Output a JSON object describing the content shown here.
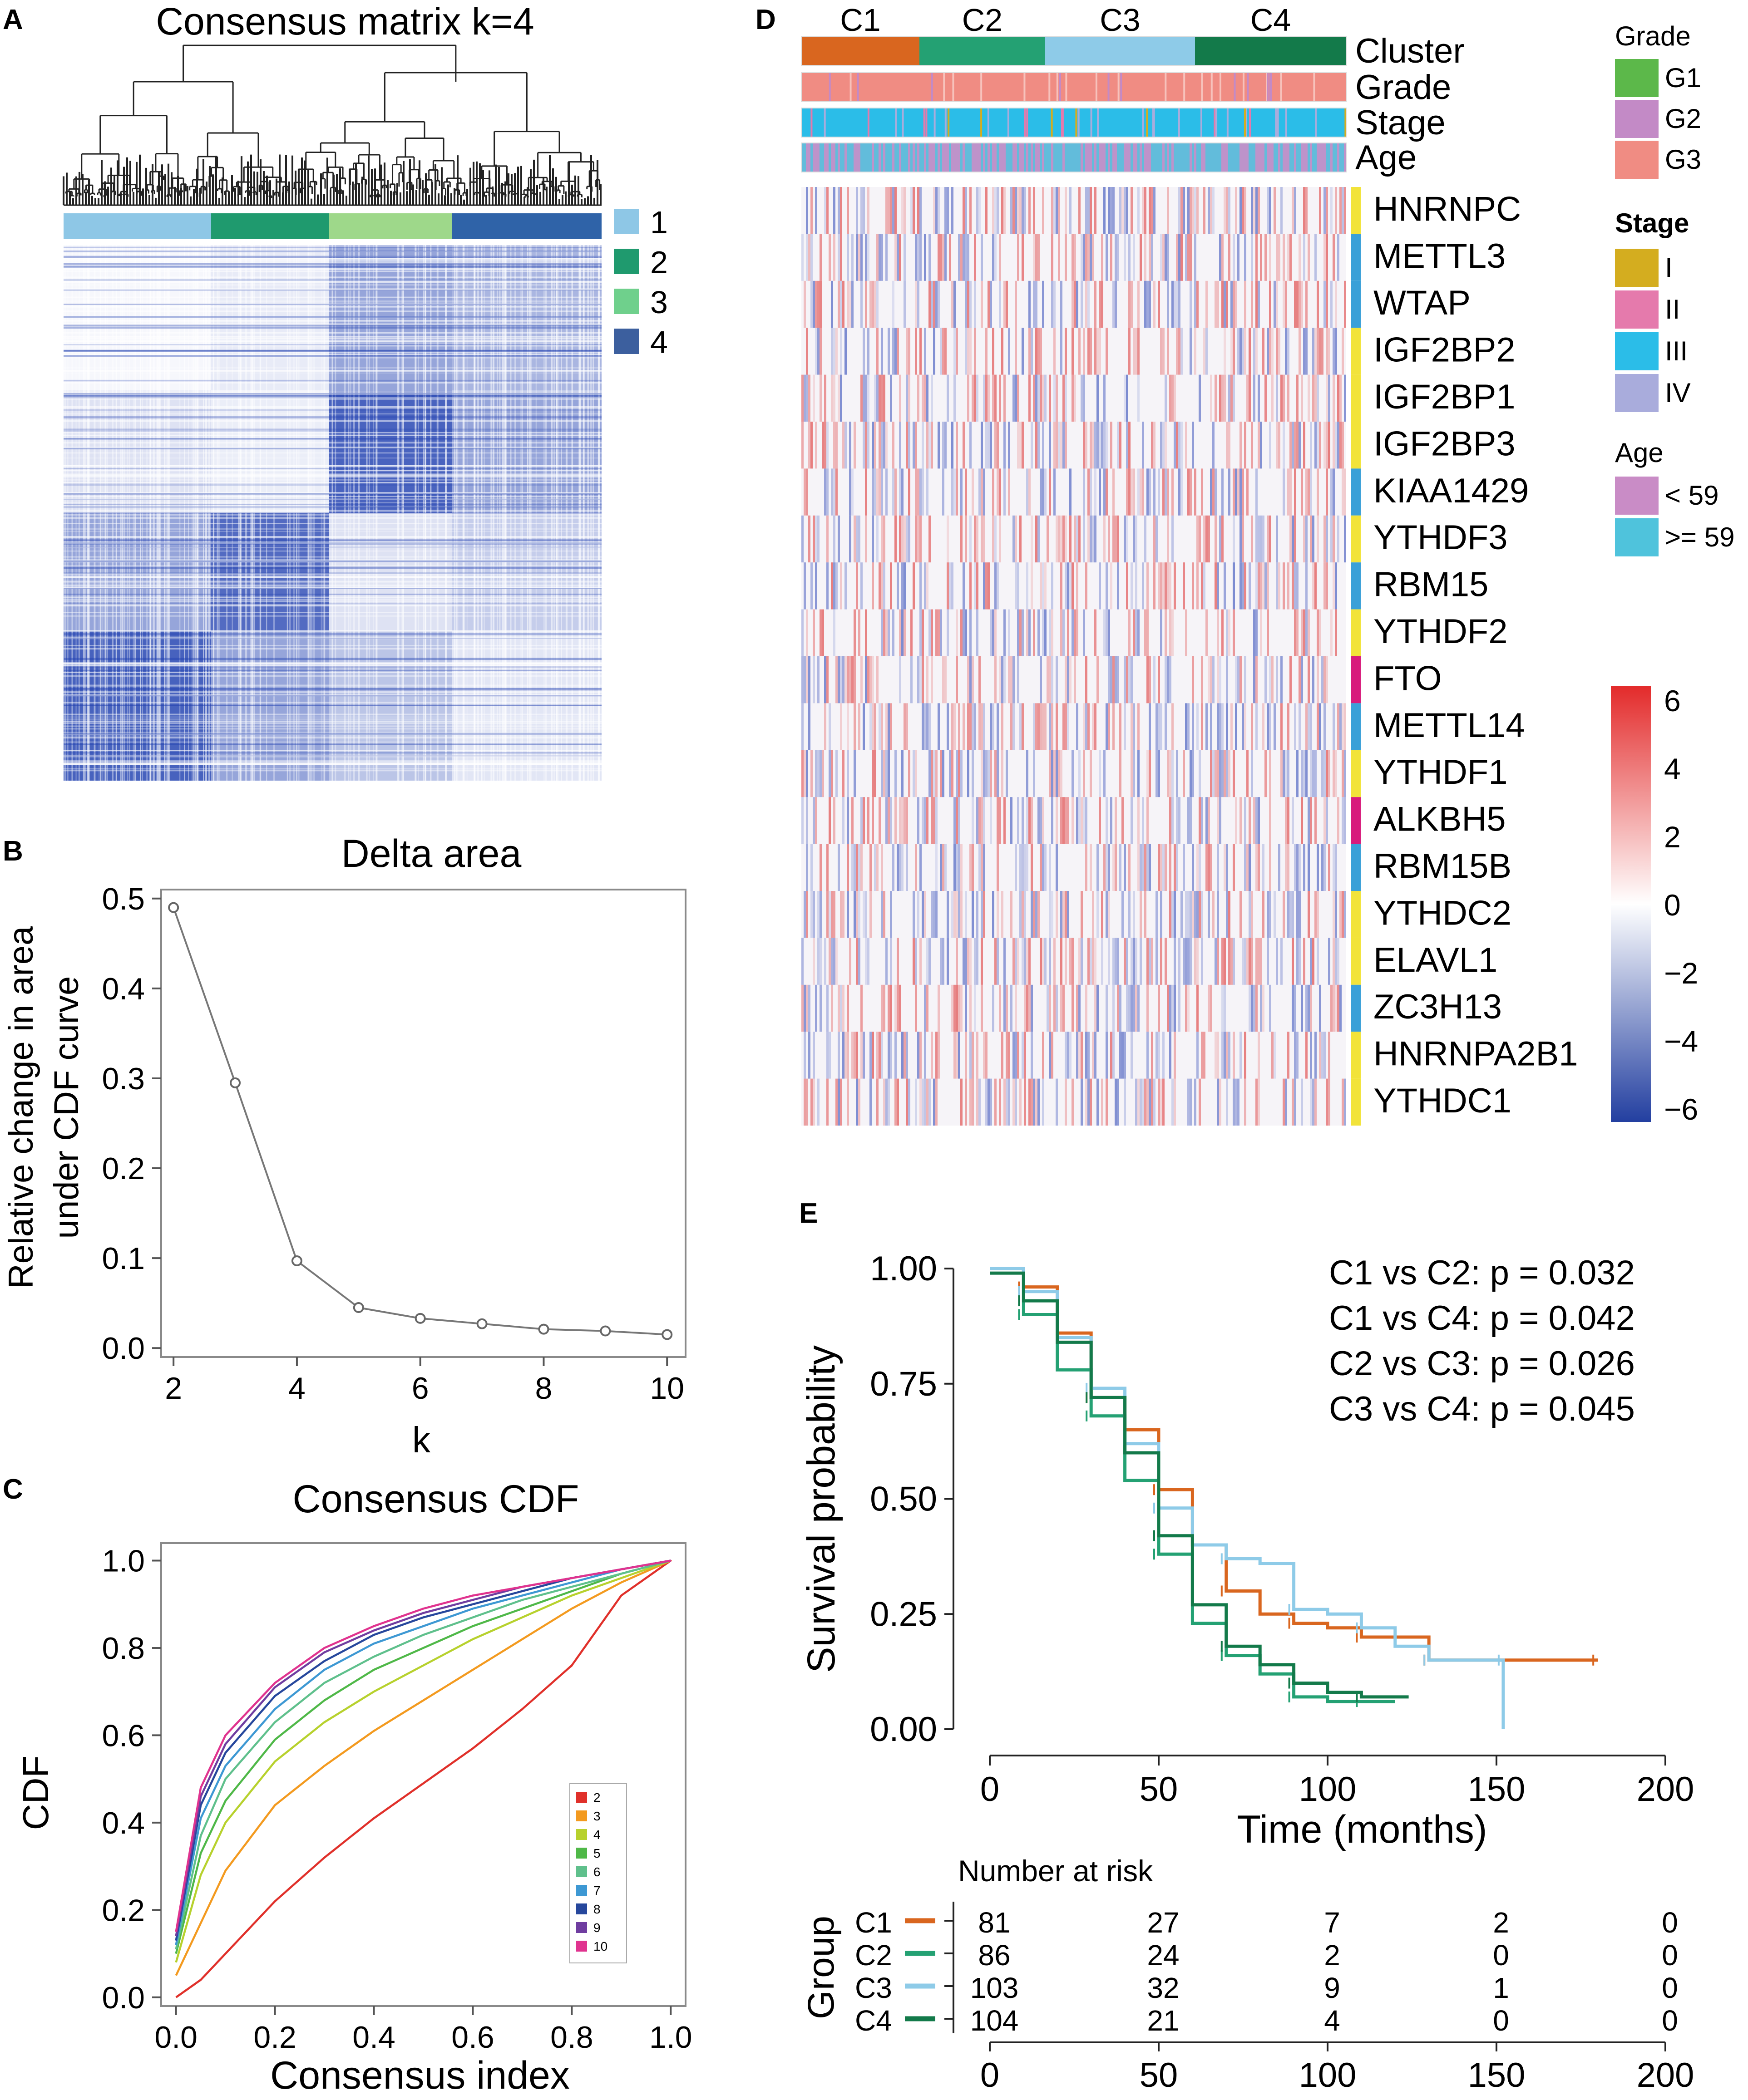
{
  "panelA": {
    "letter": "A",
    "title": "Consensus matrix k=4",
    "legend": [
      {
        "label": "1",
        "color": "#8ec7e6"
      },
      {
        "label": "2",
        "color": "#1f9a6e"
      },
      {
        "label": "3",
        "color": "#6fd08c"
      },
      {
        "label": "4",
        "color": "#3c5f9e"
      }
    ],
    "bar_colors": [
      "#8ec7e6",
      "#1f9a6e",
      "#9ed88a",
      "#2f63a8"
    ],
    "matrix_color": "#1f3fb0"
  },
  "panelB": {
    "letter": "B",
    "chart_data": {
      "type": "line",
      "title": "Delta area",
      "xlabel": "k",
      "ylabel_line1": "Relative change in area",
      "ylabel_line2": "under CDF curve",
      "x": [
        2,
        3,
        4,
        5,
        6,
        7,
        8,
        9,
        10
      ],
      "y": [
        0.49,
        0.295,
        0.097,
        0.045,
        0.033,
        0.027,
        0.021,
        0.019,
        0.015
      ],
      "xlim": [
        1.8,
        10.3
      ],
      "ylim": [
        -0.01,
        0.51
      ],
      "xticks": [
        "2",
        "4",
        "6",
        "8",
        "10"
      ],
      "yticks": [
        "0.0",
        "0.1",
        "0.2",
        "0.3",
        "0.4",
        "0.5"
      ]
    }
  },
  "panelC": {
    "letter": "C",
    "chart_data": {
      "type": "line",
      "title": "Consensus CDF",
      "xlabel": "Consensus index",
      "ylabel": "CDF",
      "xlim": [
        -0.03,
        1.03
      ],
      "ylim": [
        -0.02,
        1.04
      ],
      "xticks": [
        "0.0",
        "0.2",
        "0.4",
        "0.6",
        "0.8",
        "1.0"
      ],
      "yticks": [
        "0.0",
        "0.2",
        "0.4",
        "0.6",
        "0.8",
        "1.0"
      ],
      "x": [
        0,
        0.05,
        0.1,
        0.2,
        0.3,
        0.4,
        0.5,
        0.6,
        0.7,
        0.8,
        0.9,
        1.0
      ],
      "series": [
        {
          "name": "2",
          "color": "#e0302a",
          "values": [
            0.0,
            0.04,
            0.1,
            0.22,
            0.32,
            0.41,
            0.49,
            0.57,
            0.66,
            0.76,
            0.92,
            1.0
          ]
        },
        {
          "name": "3",
          "color": "#f39a1f",
          "values": [
            0.05,
            0.17,
            0.29,
            0.44,
            0.53,
            0.61,
            0.68,
            0.75,
            0.82,
            0.89,
            0.95,
            1.0
          ]
        },
        {
          "name": "4",
          "color": "#b7d12d",
          "values": [
            0.08,
            0.28,
            0.4,
            0.54,
            0.63,
            0.7,
            0.76,
            0.82,
            0.87,
            0.92,
            0.96,
            1.0
          ]
        },
        {
          "name": "5",
          "color": "#4fb848",
          "values": [
            0.1,
            0.33,
            0.45,
            0.59,
            0.68,
            0.75,
            0.8,
            0.85,
            0.89,
            0.93,
            0.97,
            1.0
          ]
        },
        {
          "name": "6",
          "color": "#5fc08c",
          "values": [
            0.11,
            0.37,
            0.5,
            0.63,
            0.72,
            0.78,
            0.83,
            0.87,
            0.91,
            0.94,
            0.97,
            1.0
          ]
        },
        {
          "name": "7",
          "color": "#3d98d3",
          "values": [
            0.12,
            0.41,
            0.53,
            0.66,
            0.75,
            0.81,
            0.85,
            0.89,
            0.92,
            0.95,
            0.98,
            1.0
          ]
        },
        {
          "name": "8",
          "color": "#26479c",
          "values": [
            0.13,
            0.44,
            0.56,
            0.69,
            0.77,
            0.83,
            0.87,
            0.9,
            0.93,
            0.96,
            0.98,
            1.0
          ]
        },
        {
          "name": "9",
          "color": "#6f3da0",
          "values": [
            0.14,
            0.46,
            0.58,
            0.71,
            0.79,
            0.84,
            0.88,
            0.91,
            0.94,
            0.96,
            0.98,
            1.0
          ]
        },
        {
          "name": "10",
          "color": "#e0338f",
          "values": [
            0.15,
            0.48,
            0.6,
            0.72,
            0.8,
            0.85,
            0.89,
            0.92,
            0.94,
            0.96,
            0.98,
            1.0
          ]
        }
      ]
    }
  },
  "panelD": {
    "letter": "D",
    "clusters": [
      "C1",
      "C2",
      "C3",
      "C4"
    ],
    "cluster_colors": [
      "#d9661f",
      "#24a173",
      "#8ecbe8",
      "#137a4a"
    ],
    "annotation_labels": [
      "Cluster",
      "Grade",
      "Stage",
      "Age"
    ],
    "genes": [
      {
        "name": "HNRNPC",
        "color": "#f2e33a"
      },
      {
        "name": "METTL3",
        "color": "#3aa0d8"
      },
      {
        "name": "WTAP",
        "color": "#3aa0d8"
      },
      {
        "name": "IGF2BP2",
        "color": "#f2e33a"
      },
      {
        "name": "IGF2BP1",
        "color": "#f2e33a"
      },
      {
        "name": "IGF2BP3",
        "color": "#f2e33a"
      },
      {
        "name": "KIAA1429",
        "color": "#3aa0d8"
      },
      {
        "name": "YTHDF3",
        "color": "#f2e33a"
      },
      {
        "name": "RBM15",
        "color": "#3aa0d8"
      },
      {
        "name": "YTHDF2",
        "color": "#f2e33a"
      },
      {
        "name": "FTO",
        "color": "#d81b7c"
      },
      {
        "name": "METTL14",
        "color": "#3aa0d8"
      },
      {
        "name": "YTHDF1",
        "color": "#f2e33a"
      },
      {
        "name": "ALKBH5",
        "color": "#d81b7c"
      },
      {
        "name": "RBM15B",
        "color": "#3aa0d8"
      },
      {
        "name": "YTHDC2",
        "color": "#f2e33a"
      },
      {
        "name": "ELAVL1",
        "color": "#f2e33a"
      },
      {
        "name": "ZC3H13",
        "color": "#3aa0d8"
      },
      {
        "name": "HNRNPA2B1",
        "color": "#f2e33a"
      },
      {
        "name": "YTHDC1",
        "color": "#f2e33a"
      }
    ],
    "legend_grade": {
      "title": "Grade",
      "items": [
        {
          "label": "G1",
          "color": "#5cb84a"
        },
        {
          "label": "G2",
          "color": "#c38ac6"
        },
        {
          "label": "G3",
          "color": "#f08c83"
        }
      ]
    },
    "legend_stage": {
      "title": "Stage",
      "items": [
        {
          "label": "I",
          "color": "#d4ad1f"
        },
        {
          "label": "II",
          "color": "#e57aac"
        },
        {
          "label": "III",
          "color": "#2bbde8"
        },
        {
          "label": "IV",
          "color": "#a9acdc"
        }
      ]
    },
    "legend_age": {
      "title": "Age",
      "items": [
        {
          "label": "< 59",
          "color": "#c98cc6"
        },
        {
          "label": ">= 59",
          "color": "#4fc3dc"
        }
      ]
    },
    "colorbar_ticks": [
      "6",
      "4",
      "2",
      "0",
      "−2",
      "−4",
      "−6"
    ]
  },
  "panelE": {
    "letter": "E",
    "chart_data": {
      "type": "line",
      "ylabel": "Survival probability",
      "xlabel": "Time (months)",
      "xlim": [
        -5,
        205
      ],
      "ylim": [
        -0.05,
        1.05
      ],
      "xticks": [
        "0",
        "50",
        "100",
        "150",
        "200"
      ],
      "yticks": [
        "0.00",
        "0.25",
        "0.50",
        "0.75",
        "1.00"
      ],
      "pvalues": [
        "C1 vs C2: p = 0.032",
        "C1 vs C4: p = 0.042",
        "C2 vs C3: p = 0.026",
        "C3 vs C4: p = 0.045"
      ],
      "series": [
        {
          "name": "C1",
          "color": "#d9661f",
          "x": [
            0,
            10,
            20,
            30,
            40,
            50,
            60,
            70,
            80,
            90,
            100,
            110,
            120,
            130,
            150,
            180
          ],
          "y": [
            1.0,
            0.96,
            0.86,
            0.72,
            0.65,
            0.52,
            0.4,
            0.3,
            0.25,
            0.23,
            0.22,
            0.2,
            0.2,
            0.15,
            0.15,
            0.15
          ]
        },
        {
          "name": "C2",
          "color": "#24a173",
          "x": [
            0,
            10,
            20,
            30,
            40,
            50,
            60,
            70,
            80,
            90,
            100,
            110,
            120
          ],
          "y": [
            1.0,
            0.9,
            0.78,
            0.68,
            0.54,
            0.38,
            0.23,
            0.16,
            0.12,
            0.07,
            0.06,
            0.06,
            0.06
          ]
        },
        {
          "name": "C3",
          "color": "#8ecbe8",
          "x": [
            0,
            10,
            20,
            30,
            40,
            50,
            60,
            70,
            80,
            90,
            100,
            110,
            120,
            130,
            150,
            152,
            152
          ],
          "y": [
            1.0,
            0.95,
            0.85,
            0.74,
            0.62,
            0.48,
            0.4,
            0.37,
            0.36,
            0.26,
            0.25,
            0.22,
            0.18,
            0.15,
            0.15,
            0.15,
            0.0
          ]
        },
        {
          "name": "C4",
          "color": "#137a4a",
          "x": [
            0,
            10,
            20,
            30,
            40,
            50,
            60,
            70,
            80,
            90,
            100,
            110,
            124
          ],
          "y": [
            0.99,
            0.93,
            0.84,
            0.72,
            0.6,
            0.42,
            0.27,
            0.18,
            0.14,
            0.1,
            0.08,
            0.07,
            0.07
          ]
        }
      ]
    },
    "risk_title": "Number at risk",
    "risk_axis_label": "Group",
    "risk_ticks": [
      "0",
      "50",
      "100",
      "150",
      "200"
    ],
    "risk_table": [
      {
        "group": "C1",
        "color": "#d9661f",
        "counts": [
          "81",
          "27",
          "7",
          "2",
          "0"
        ]
      },
      {
        "group": "C2",
        "color": "#24a173",
        "counts": [
          "86",
          "24",
          "2",
          "0",
          "0"
        ]
      },
      {
        "group": "C3",
        "color": "#8ecbe8",
        "counts": [
          "103",
          "32",
          "9",
          "1",
          "0"
        ]
      },
      {
        "group": "C4",
        "color": "#137a4a",
        "counts": [
          "104",
          "21",
          "4",
          "0",
          "0"
        ]
      }
    ]
  }
}
